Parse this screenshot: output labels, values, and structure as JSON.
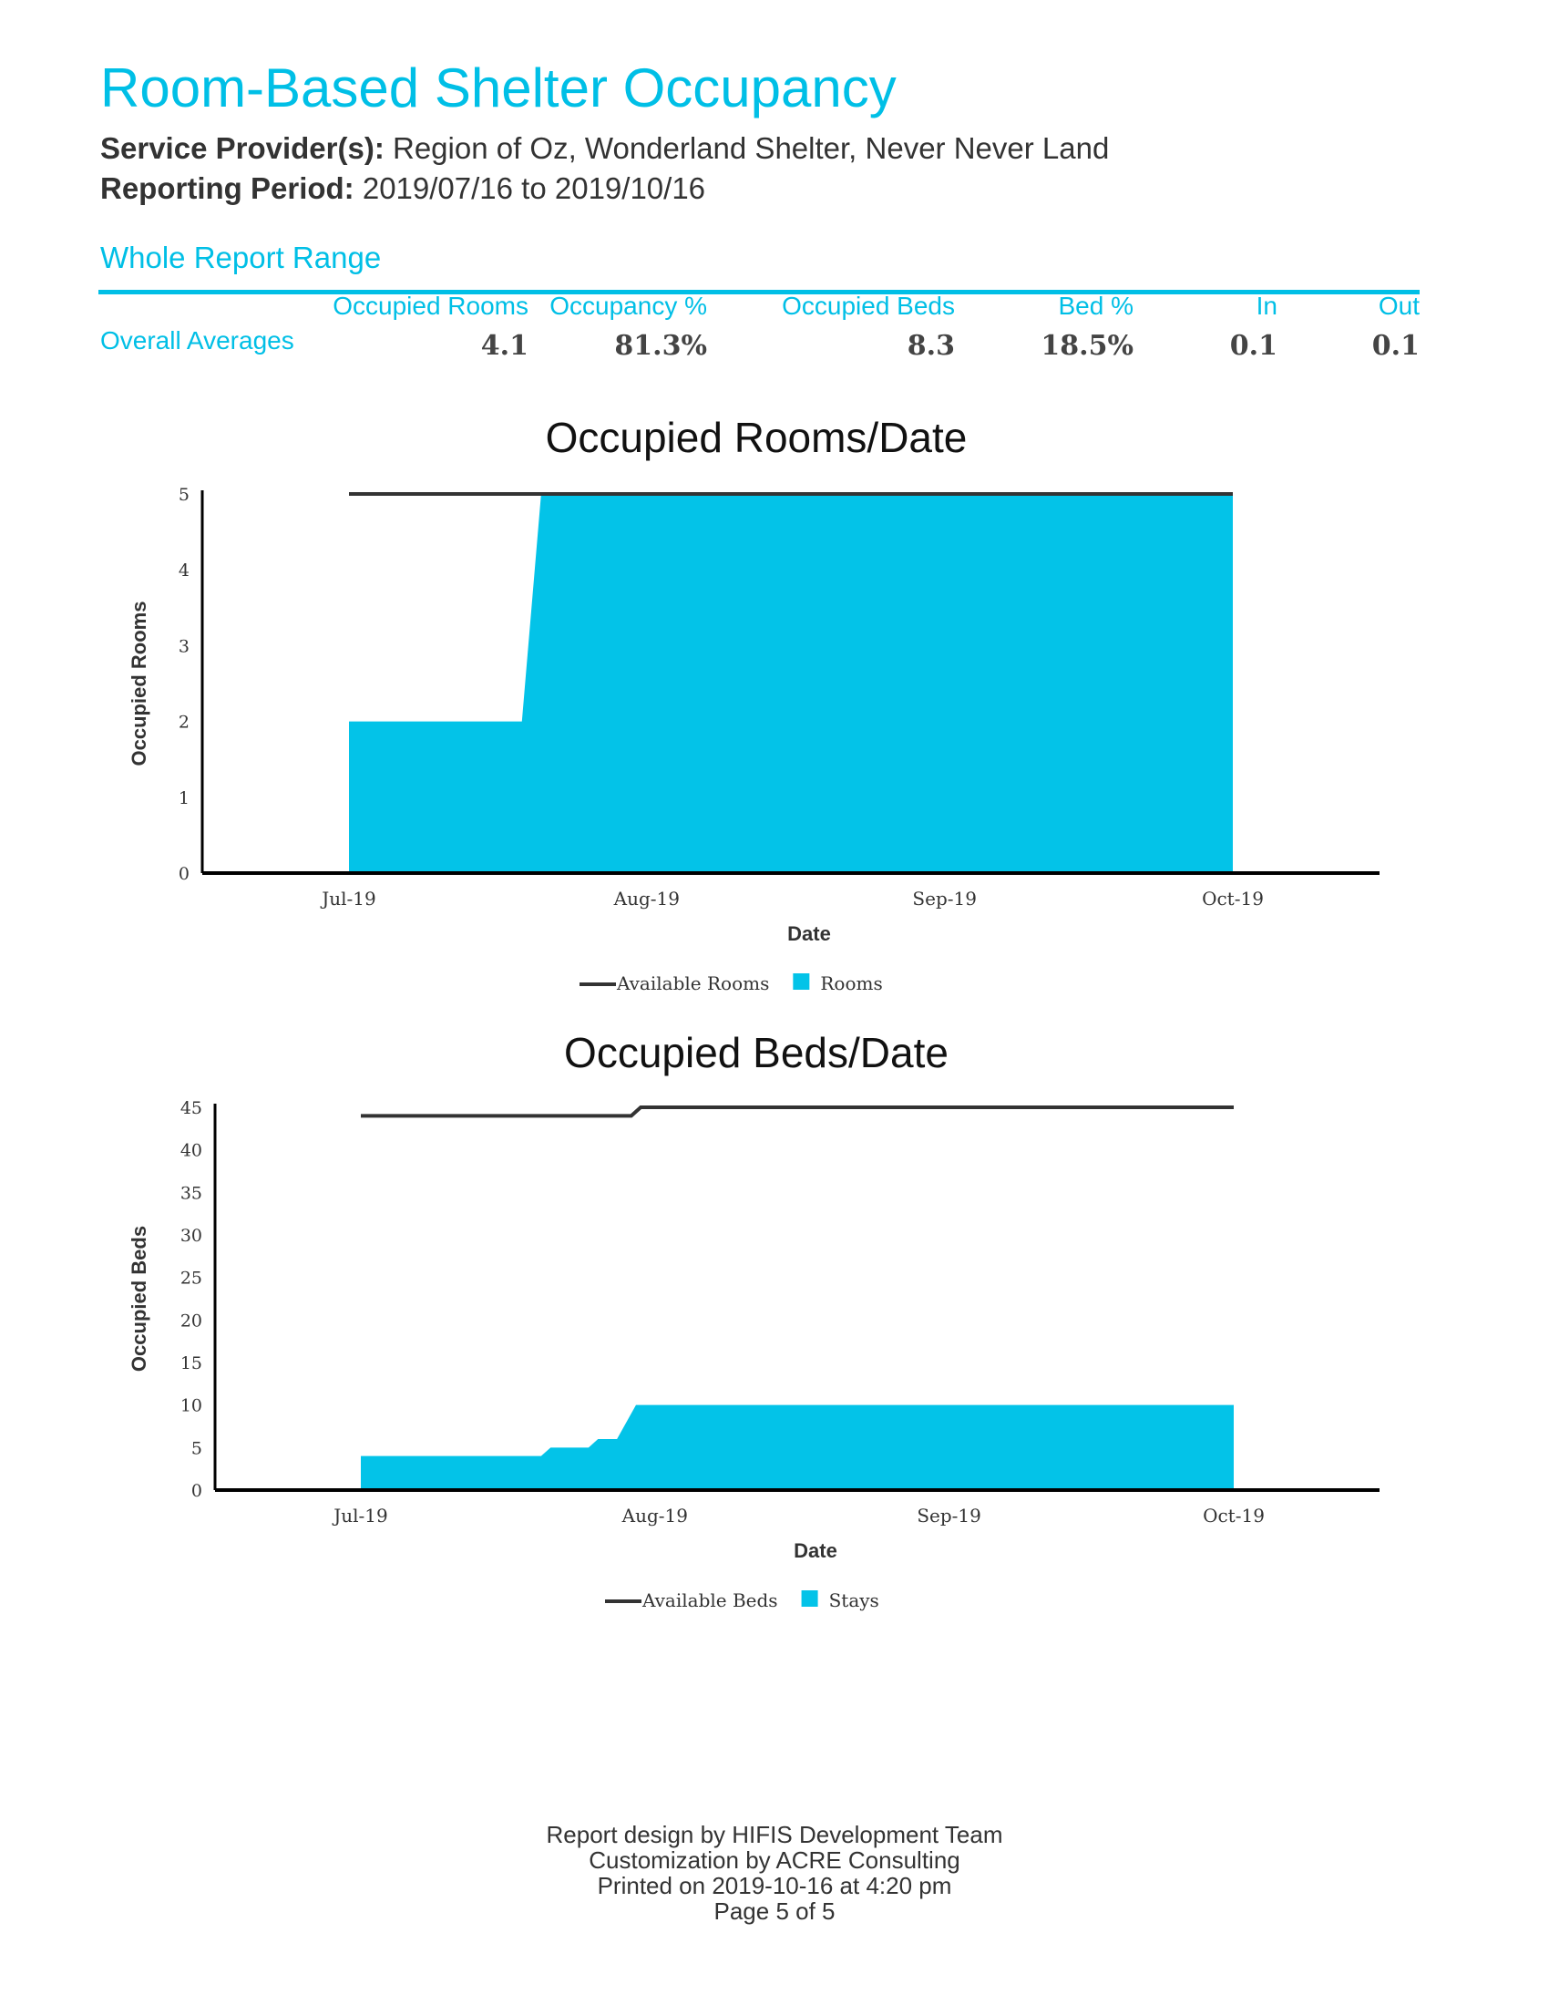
{
  "header": {
    "title": "Room-Based Shelter Occupancy",
    "provider_label": "Service Provider(s):",
    "provider_value": "Region of Oz, Wonderland Shelter, Never Never Land",
    "period_label": "Reporting Period:",
    "period_value": "2019/07/16 to 2019/10/16"
  },
  "summary": {
    "section_title": "Whole Report Range",
    "row_label": "Overall Averages",
    "columns": [
      "Occupied Rooms",
      "Occupancy %",
      "Occupied Beds",
      "Bed %",
      "In",
      "Out"
    ],
    "values": [
      "4.1",
      "81.3%",
      "8.3",
      "18.5%",
      "0.1",
      "0.1"
    ]
  },
  "colors": {
    "accent": "#00bfe6",
    "fill": "#03c3e8",
    "line": "#333333"
  },
  "chart_data": [
    {
      "type": "area",
      "title": "Occupied Rooms/Date",
      "xlabel": "Date",
      "ylabel": "Occupied Rooms",
      "ylim": [
        0,
        5
      ],
      "yticks": [
        0,
        1,
        2,
        3,
        4,
        5
      ],
      "xticks": [
        {
          "day": 0,
          "label": "Jul-19"
        },
        {
          "day": 31,
          "label": "Aug-19"
        },
        {
          "day": 62,
          "label": "Sep-19"
        },
        {
          "day": 92,
          "label": "Oct-19"
        }
      ],
      "xrange_days": [
        -16,
        108
      ],
      "series": [
        {
          "name": "Available Rooms",
          "kind": "line",
          "points": [
            [
              0,
              5
            ],
            [
              92,
              5
            ]
          ]
        },
        {
          "name": "Rooms",
          "kind": "area",
          "points": [
            [
              0,
              2
            ],
            [
              18,
              2
            ],
            [
              20,
              5
            ],
            [
              92,
              5
            ]
          ]
        }
      ],
      "legend": "bottom-center"
    },
    {
      "type": "area",
      "title": "Occupied Beds/Date",
      "xlabel": "Date",
      "ylabel": "Occupied Beds",
      "ylim": [
        0,
        45
      ],
      "yticks": [
        0,
        5,
        10,
        15,
        20,
        25,
        30,
        35,
        40,
        45
      ],
      "xticks": [
        {
          "day": 0,
          "label": "Jul-19"
        },
        {
          "day": 31,
          "label": "Aug-19"
        },
        {
          "day": 62,
          "label": "Sep-19"
        },
        {
          "day": 92,
          "label": "Oct-19"
        }
      ],
      "xrange_days": [
        -16,
        108
      ],
      "series": [
        {
          "name": "Available Beds",
          "kind": "line",
          "points": [
            [
              0,
              44
            ],
            [
              28.5,
              44
            ],
            [
              29.5,
              45
            ],
            [
              92,
              45
            ]
          ]
        },
        {
          "name": "Stays",
          "kind": "area",
          "points": [
            [
              0,
              4
            ],
            [
              19,
              4
            ],
            [
              20,
              5
            ],
            [
              24,
              5
            ],
            [
              25,
              6
            ],
            [
              27,
              6
            ],
            [
              29,
              10
            ],
            [
              92,
              10
            ]
          ]
        }
      ],
      "legend": "bottom-center"
    }
  ],
  "footer": {
    "lines": [
      "Report design by HIFIS Development Team",
      "Customization by ACRE Consulting",
      "Printed on 2019-10-16 at  4:20 pm",
      "Page 5 of 5"
    ]
  }
}
